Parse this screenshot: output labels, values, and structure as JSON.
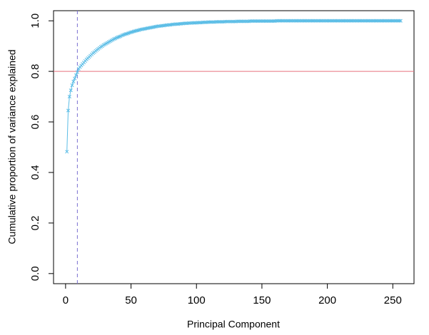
{
  "chart_data": {
    "type": "line",
    "xlabel": "Principal Component",
    "ylabel": "Cumulative proportion of variance explained",
    "x": [
      1,
      2,
      3,
      4,
      5,
      6,
      7,
      8,
      9,
      10,
      11,
      12,
      13,
      14,
      15,
      16,
      17,
      18,
      19,
      20,
      21,
      22,
      23,
      24,
      25,
      26,
      27,
      28,
      29,
      30,
      31,
      32,
      33,
      34,
      35,
      36,
      37,
      38,
      39,
      40,
      41,
      42,
      43,
      44,
      45,
      46,
      47,
      48,
      49,
      50,
      51,
      52,
      53,
      54,
      55,
      56,
      57,
      58,
      59,
      60,
      61,
      62,
      63,
      64,
      65,
      66,
      67,
      68,
      69,
      70,
      71,
      72,
      73,
      74,
      75,
      76,
      77,
      78,
      79,
      80,
      81,
      82,
      83,
      84,
      85,
      86,
      87,
      88,
      89,
      90,
      91,
      92,
      93,
      94,
      95,
      96,
      97,
      98,
      99,
      100,
      101,
      102,
      103,
      104,
      105,
      106,
      107,
      108,
      109,
      110,
      111,
      112,
      113,
      114,
      115,
      116,
      117,
      118,
      119,
      120,
      121,
      122,
      123,
      124,
      125,
      126,
      127,
      128,
      129,
      130,
      131,
      132,
      133,
      134,
      135,
      136,
      137,
      138,
      139,
      140,
      141,
      142,
      143,
      144,
      145,
      146,
      147,
      148,
      149,
      150,
      151,
      152,
      153,
      154,
      155,
      156,
      157,
      158,
      159,
      160,
      161,
      162,
      163,
      164,
      165,
      166,
      167,
      168,
      169,
      170,
      171,
      172,
      173,
      174,
      175,
      176,
      177,
      178,
      179,
      180,
      181,
      182,
      183,
      184,
      185,
      186,
      187,
      188,
      189,
      190,
      191,
      192,
      193,
      194,
      195,
      196,
      197,
      198,
      199,
      200,
      201,
      202,
      203,
      204,
      205,
      206,
      207,
      208,
      209,
      210,
      211,
      212,
      213,
      214,
      215,
      216,
      217,
      218,
      219,
      220,
      221,
      222,
      223,
      224,
      225,
      226,
      227,
      228,
      229,
      230,
      231,
      232,
      233,
      234,
      235,
      236,
      237,
      238,
      239,
      240,
      241,
      242,
      243,
      244,
      245,
      246,
      247,
      248,
      249,
      250,
      251,
      252,
      253,
      254,
      255,
      256
    ],
    "values": [
      0.482,
      0.645,
      0.7,
      0.725,
      0.745,
      0.76,
      0.772,
      0.785,
      0.797,
      0.81,
      0.817,
      0.823,
      0.829,
      0.835,
      0.841,
      0.847,
      0.852,
      0.857,
      0.862,
      0.867,
      0.872,
      0.876,
      0.881,
      0.885,
      0.889,
      0.893,
      0.897,
      0.9,
      0.904,
      0.907,
      0.91,
      0.913,
      0.916,
      0.919,
      0.922,
      0.925,
      0.928,
      0.93,
      0.933,
      0.935,
      0.937,
      0.939,
      0.942,
      0.944,
      0.946,
      0.948,
      0.949,
      0.951,
      0.953,
      0.955,
      0.956,
      0.958,
      0.959,
      0.961,
      0.962,
      0.963,
      0.965,
      0.966,
      0.967,
      0.968,
      0.969,
      0.97,
      0.971,
      0.972,
      0.973,
      0.974,
      0.975,
      0.976,
      0.977,
      0.978,
      0.979,
      0.979,
      0.98,
      0.981,
      0.981,
      0.982,
      0.983,
      0.983,
      0.984,
      0.984,
      0.985,
      0.986,
      0.986,
      0.987,
      0.987,
      0.987,
      0.988,
      0.988,
      0.989,
      0.989,
      0.99,
      0.99,
      0.99,
      0.991,
      0.991,
      0.991,
      0.992,
      0.992,
      0.992,
      0.992,
      0.993,
      0.993,
      0.993,
      0.993,
      0.994,
      0.994,
      0.994,
      0.994,
      0.995,
      0.995,
      0.995,
      0.995,
      0.995,
      0.995,
      0.996,
      0.996,
      0.996,
      0.996,
      0.996,
      0.996,
      0.996,
      0.997,
      0.997,
      0.997,
      0.997,
      0.997,
      0.997,
      0.997,
      0.997,
      0.997,
      0.998,
      0.998,
      0.998,
      0.998,
      0.998,
      0.998,
      0.998,
      0.998,
      0.998,
      0.998,
      0.999,
      0.999,
      0.999,
      0.999,
      0.999,
      0.999,
      0.999,
      0.999,
      0.999,
      0.999,
      0.999,
      0.999,
      0.999,
      0.999,
      0.999,
      0.999,
      0.999,
      0.999,
      0.999,
      0.999,
      1,
      1,
      1,
      1,
      1,
      1,
      1,
      1,
      1,
      1,
      1,
      1,
      1,
      1,
      1,
      1,
      1,
      1,
      1,
      1,
      1,
      1,
      1,
      1,
      1,
      1,
      1,
      1,
      1,
      1,
      1,
      1,
      1,
      1,
      1,
      1,
      1,
      1,
      1,
      1,
      1,
      1,
      1,
      1,
      1,
      1,
      1,
      1,
      1,
      1,
      1,
      1,
      1,
      1,
      1,
      1,
      1,
      1,
      1,
      1,
      1,
      1,
      1,
      1,
      1,
      1,
      1,
      1,
      1,
      1,
      1,
      1,
      1,
      1,
      1,
      1,
      1,
      1,
      1,
      1,
      1,
      1,
      1,
      1,
      1,
      1,
      1,
      1,
      1,
      1,
      1,
      1,
      1,
      1,
      1,
      1
    ],
    "color": "#5bbde6",
    "xlim": [
      -9.2,
      266.2
    ],
    "xticks": [
      0,
      50,
      100,
      150,
      200,
      250
    ],
    "ylim": [
      -0.04,
      1.04
    ],
    "yticks": [
      {
        "value": 0,
        "label": "0.0"
      },
      0.2,
      0.4,
      0.6,
      0.8,
      {
        "value": 1,
        "label": "1.0"
      }
    ],
    "hline": 0.8,
    "hline_color": "#e8707e",
    "vline": 9,
    "vline_color": "#7a6fd0"
  }
}
